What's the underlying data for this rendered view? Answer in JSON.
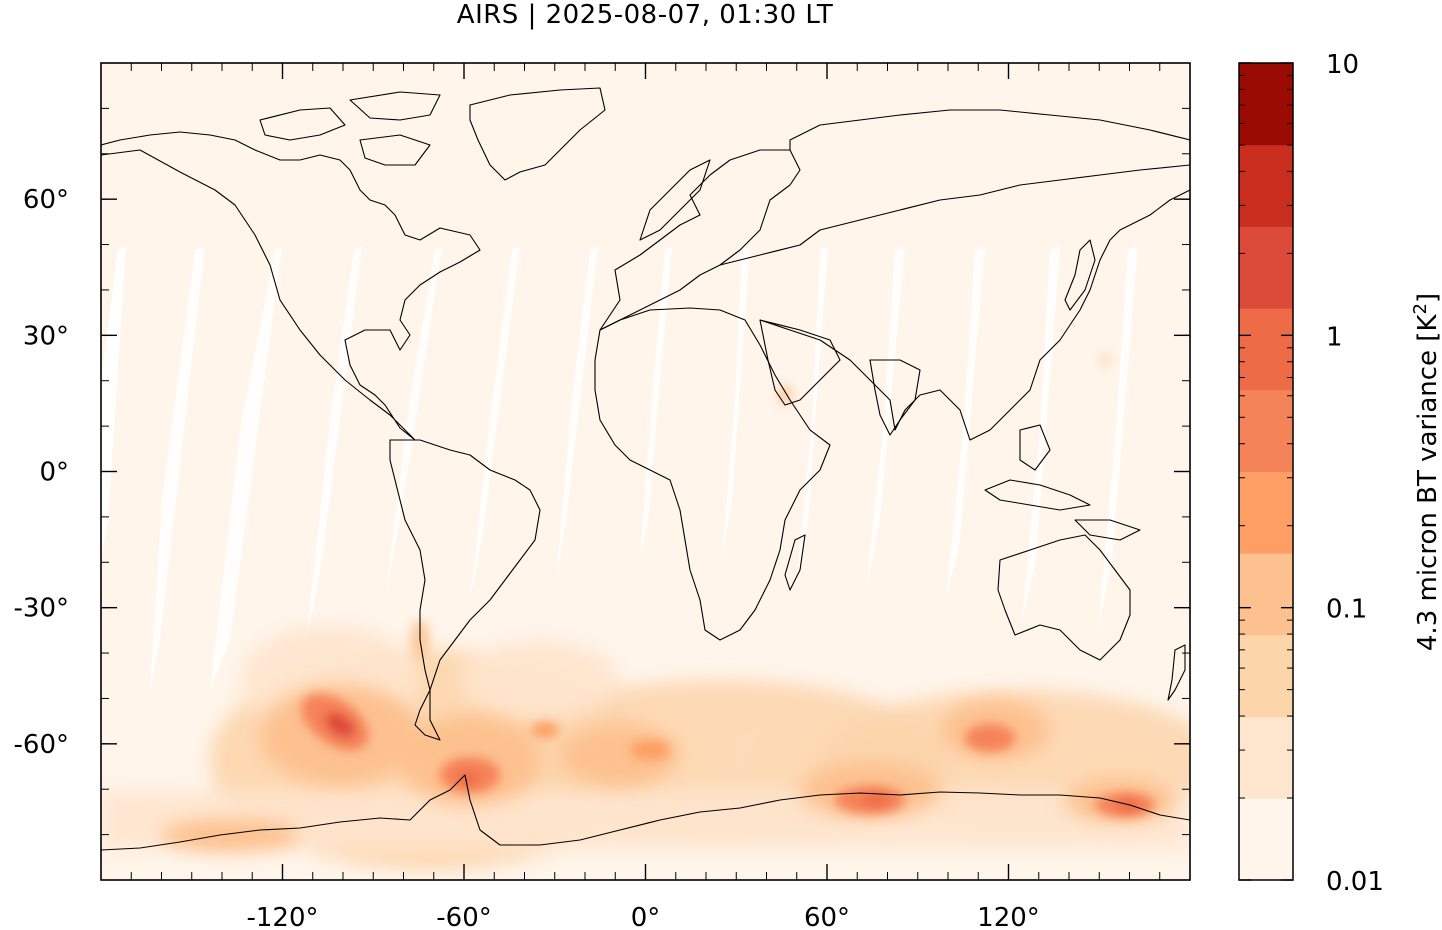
{
  "title": "AIRS | 2025-08-07, 01:30 LT",
  "map": {
    "xlim": [
      -180,
      180
    ],
    "ylim": [
      -90,
      90
    ],
    "x_ticks": [
      {
        "value": -120,
        "label": "-120°"
      },
      {
        "value": -60,
        "label": "-60°"
      },
      {
        "value": 0,
        "label": "0°"
      },
      {
        "value": 60,
        "label": "60°"
      },
      {
        "value": 120,
        "label": "120°"
      }
    ],
    "y_ticks": [
      {
        "value": 60,
        "label": "60°"
      },
      {
        "value": 30,
        "label": "30°"
      },
      {
        "value": 0,
        "label": "0°"
      },
      {
        "value": -30,
        "label": "-30°"
      },
      {
        "value": -60,
        "label": "-60°"
      }
    ],
    "background_color": "#fff5eb",
    "coastline_color": "#000000"
  },
  "colorbar": {
    "label_main": "4.3 micron BT variance [K",
    "label_sup": "2",
    "label_end": "]",
    "scale": "log",
    "ticks": [
      {
        "value": 10,
        "label": "10"
      },
      {
        "value": 1,
        "label": "1"
      },
      {
        "value": 0.1,
        "label": "0.1"
      },
      {
        "value": 0.01,
        "label": "0.01"
      }
    ],
    "levels_colors_bottom_to_top": [
      "#fff5eb",
      "#fee6ce",
      "#fdd5ab",
      "#fdc18f",
      "#fd9f64",
      "#f5835a",
      "#ee6b47",
      "#dc4a39",
      "#c92d1e",
      "#9a0b03"
    ]
  }
}
